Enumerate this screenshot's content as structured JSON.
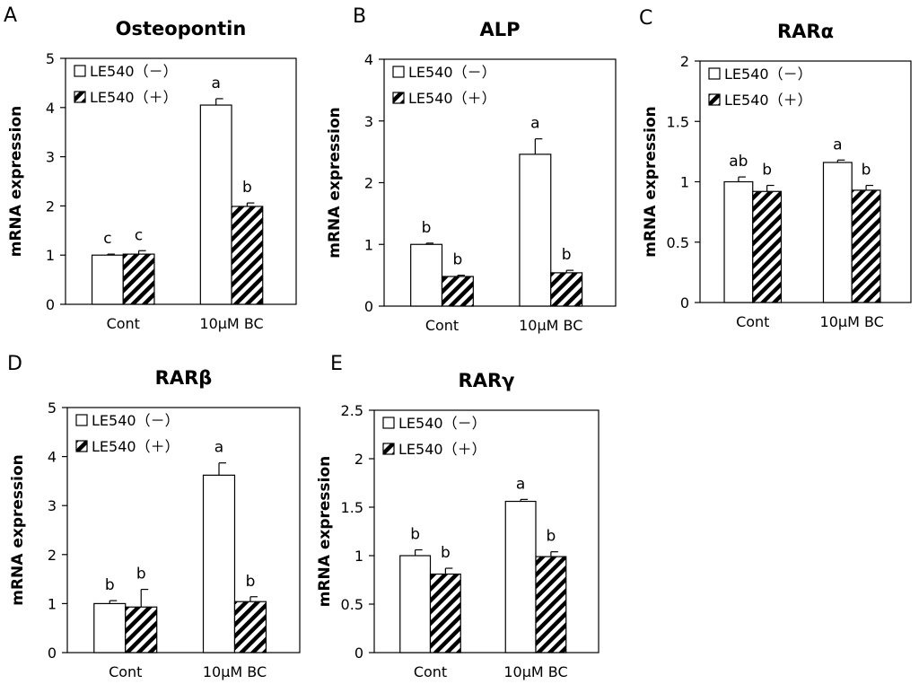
{
  "chart_data": [
    {
      "panel": "A",
      "type": "bar",
      "title": "Osteopontin",
      "ylabel": "mRNA expression",
      "xlabel": "",
      "ylim": [
        0,
        5
      ],
      "yticks": [
        0,
        1,
        2,
        3,
        4,
        5
      ],
      "categories": [
        "Cont",
        "10μM BC"
      ],
      "series": [
        {
          "name": "LE540（－）",
          "values": [
            1.0,
            4.05
          ],
          "errors": [
            0.02,
            0.13
          ],
          "labels": [
            "c",
            "a"
          ]
        },
        {
          "name": "LE540（＋）",
          "values": [
            1.02,
            1.99
          ],
          "errors": [
            0.07,
            0.07
          ],
          "labels": [
            "c",
            "b"
          ]
        }
      ]
    },
    {
      "panel": "B",
      "type": "bar",
      "title": "ALP",
      "ylabel": "mRNA expression",
      "xlabel": "",
      "ylim": [
        0,
        4
      ],
      "yticks": [
        0,
        1,
        2,
        3,
        4
      ],
      "categories": [
        "Cont",
        "10μM BC"
      ],
      "series": [
        {
          "name": "LE540（－）",
          "values": [
            1.0,
            2.46
          ],
          "errors": [
            0.02,
            0.25
          ],
          "labels": [
            "b",
            "a"
          ]
        },
        {
          "name": "LE540（＋）",
          "values": [
            0.48,
            0.54
          ],
          "errors": [
            0.02,
            0.04
          ],
          "labels": [
            "b",
            "b"
          ]
        }
      ]
    },
    {
      "panel": "C",
      "type": "bar",
      "title": "RARα",
      "ylabel": "mRNA expression",
      "xlabel": "",
      "ylim": [
        0,
        2
      ],
      "yticks": [
        "0",
        "0.5",
        "1",
        "1.5",
        "2"
      ],
      "categories": [
        "Cont",
        "10μM BC"
      ],
      "series": [
        {
          "name": "LE540（－）",
          "values": [
            1.0,
            1.16
          ],
          "errors": [
            0.04,
            0.02
          ],
          "labels": [
            "ab",
            "a"
          ]
        },
        {
          "name": "LE540（＋）",
          "values": [
            0.92,
            0.93
          ],
          "errors": [
            0.05,
            0.04
          ],
          "labels": [
            "b",
            "b"
          ]
        }
      ]
    },
    {
      "panel": "D",
      "type": "bar",
      "title": "RARβ",
      "ylabel": "mRNA expression",
      "xlabel": "",
      "ylim": [
        0,
        5
      ],
      "yticks": [
        0,
        1,
        2,
        3,
        4,
        5
      ],
      "categories": [
        "Cont",
        "10μM BC"
      ],
      "series": [
        {
          "name": "LE540（－）",
          "values": [
            1.0,
            3.62
          ],
          "errors": [
            0.06,
            0.25
          ],
          "labels": [
            "b",
            "a"
          ]
        },
        {
          "name": "LE540（＋）",
          "values": [
            0.93,
            1.04
          ],
          "errors": [
            0.36,
            0.1
          ],
          "labels": [
            "b",
            "b"
          ]
        }
      ]
    },
    {
      "panel": "E",
      "type": "bar",
      "title": "RARγ",
      "ylabel": "mRNA expression",
      "xlabel": "",
      "ylim": [
        0,
        2.5
      ],
      "yticks": [
        "0",
        "0.5",
        "1",
        "1.5",
        "2",
        "2.5"
      ],
      "categories": [
        "Cont",
        "10μM BC"
      ],
      "series": [
        {
          "name": "LE540（－）",
          "values": [
            1.0,
            1.56
          ],
          "errors": [
            0.06,
            0.02
          ],
          "labels": [
            "b",
            "a"
          ]
        },
        {
          "name": "LE540（＋）",
          "values": [
            0.81,
            0.99
          ],
          "errors": [
            0.06,
            0.05
          ],
          "labels": [
            "b",
            "b"
          ]
        }
      ]
    }
  ]
}
